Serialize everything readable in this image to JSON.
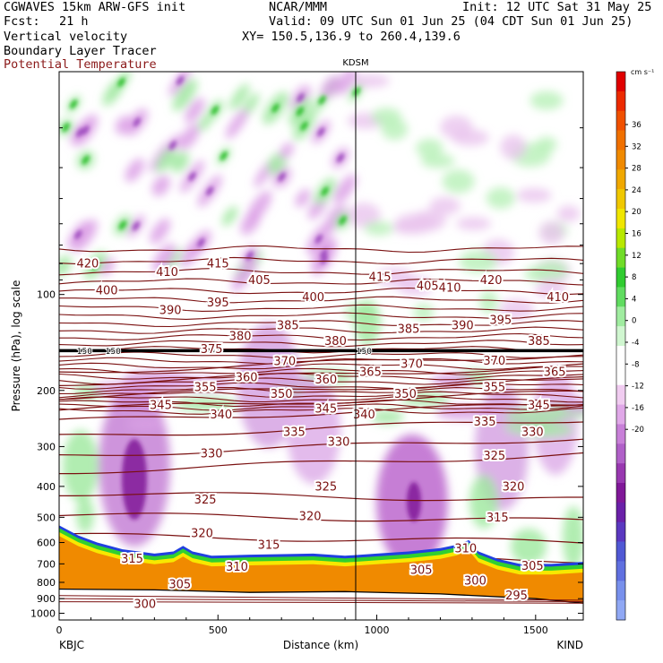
{
  "header": {
    "model": "CGWAVES 15km ARW-GFS init",
    "source": "NCAR/MMM",
    "init": "Init: 12 UTC Sat 31 May 25",
    "fcst_label": "Fcst:",
    "fcst_value": "21 h",
    "valid": "Valid: 09 UTC Sun 01 Jun 25 (04 CDT Sun 01 Jun 25)",
    "field1": "Vertical velocity",
    "field2": "Boundary Layer Tracer",
    "field3": "Potential Temperature",
    "xy": "XY= 150.5,136.9 to 260.4,139.6"
  },
  "colors": {
    "theta": "#7a1010",
    "tropopause": "#000000",
    "terrain_orange": "#f08a00",
    "terrain_yellow": "#f8e800",
    "terrain_green": "#30d030",
    "terrain_blue": "#2040e0"
  },
  "chart_data": {
    "type": "heatmap",
    "station_marker": "KDSM",
    "xlabel": "Distance (km)",
    "ylabel": "Pressure (hPa), log scale",
    "x_ticks": [
      "0",
      "500",
      "1000",
      "1500"
    ],
    "x_tick_values": [
      0,
      500,
      1000,
      1500
    ],
    "xlim": [
      0,
      1650
    ],
    "left_station": "KBJC",
    "right_station": "KIND",
    "y_ticks": [
      "100",
      "200",
      "300",
      "400",
      "500",
      "600",
      "700",
      "800",
      "900",
      "1000"
    ],
    "y_tick_values": [
      100,
      200,
      300,
      400,
      500,
      600,
      700,
      800,
      900,
      1000
    ],
    "y_scale": "log",
    "ylim": [
      1050,
      20
    ],
    "colorbar": {
      "unit": "cm s⁻¹",
      "labels": [
        "36",
        "32",
        "28",
        "24",
        "20",
        "16",
        "12",
        "8",
        "4",
        "0",
        "-4",
        "-8",
        "-12",
        "-16",
        "-20"
      ],
      "colors": [
        "#e00000",
        "#ec2a00",
        "#f05000",
        "#f07000",
        "#f08a00",
        "#f0a800",
        "#f0c800",
        "#f0e600",
        "#b8e800",
        "#70dc28",
        "#30cc30",
        "#60dc60",
        "#a0eca0",
        "#d0f6d0",
        "#ffffff",
        "#ffffff",
        "#f0ccf0",
        "#e0a8e8",
        "#c880d8",
        "#b060c8",
        "#9838b0",
        "#801898",
        "#6a20a8",
        "#5a38c0",
        "#5058d4",
        "#6070e0",
        "#7890ec",
        "#90a8f4"
      ]
    },
    "tropopause_label": "150",
    "theta_labels": [
      {
        "text": "420",
        "x": 90,
        "p": 80
      },
      {
        "text": "410",
        "x": 340,
        "p": 85
      },
      {
        "text": "415",
        "x": 500,
        "p": 80
      },
      {
        "text": "405",
        "x": 630,
        "p": 90
      },
      {
        "text": "400",
        "x": 150,
        "p": 97
      },
      {
        "text": "400",
        "x": 800,
        "p": 102
      },
      {
        "text": "415",
        "x": 1010,
        "p": 88
      },
      {
        "text": "405",
        "x": 1160,
        "p": 94
      },
      {
        "text": "410",
        "x": 1230,
        "p": 95
      },
      {
        "text": "420",
        "x": 1360,
        "p": 90
      },
      {
        "text": "410",
        "x": 1570,
        "p": 102
      },
      {
        "text": "390",
        "x": 350,
        "p": 112
      },
      {
        "text": "395",
        "x": 500,
        "p": 106
      },
      {
        "text": "385",
        "x": 1100,
        "p": 128
      },
      {
        "text": "390",
        "x": 1270,
        "p": 125
      },
      {
        "text": "395",
        "x": 1390,
        "p": 120
      },
      {
        "text": "385",
        "x": 1510,
        "p": 140
      },
      {
        "text": "380",
        "x": 570,
        "p": 135
      },
      {
        "text": "385",
        "x": 720,
        "p": 125
      },
      {
        "text": "380",
        "x": 870,
        "p": 140
      },
      {
        "text": "375",
        "x": 480,
        "p": 148
      },
      {
        "text": "370",
        "x": 710,
        "p": 162
      },
      {
        "text": "370",
        "x": 1110,
        "p": 165
      },
      {
        "text": "370",
        "x": 1370,
        "p": 161
      },
      {
        "text": "365",
        "x": 980,
        "p": 175
      },
      {
        "text": "365",
        "x": 1560,
        "p": 175
      },
      {
        "text": "355",
        "x": 460,
        "p": 195
      },
      {
        "text": "360",
        "x": 590,
        "p": 182
      },
      {
        "text": "360",
        "x": 840,
        "p": 185
      },
      {
        "text": "355",
        "x": 1370,
        "p": 195
      },
      {
        "text": "350",
        "x": 700,
        "p": 205
      },
      {
        "text": "350",
        "x": 1090,
        "p": 205
      },
      {
        "text": "345",
        "x": 320,
        "p": 222
      },
      {
        "text": "345",
        "x": 840,
        "p": 228
      },
      {
        "text": "345",
        "x": 1510,
        "p": 222
      },
      {
        "text": "340",
        "x": 510,
        "p": 238
      },
      {
        "text": "340",
        "x": 960,
        "p": 238
      },
      {
        "text": "335",
        "x": 740,
        "p": 270
      },
      {
        "text": "335",
        "x": 1340,
        "p": 250
      },
      {
        "text": "330",
        "x": 1490,
        "p": 270
      },
      {
        "text": "330",
        "x": 880,
        "p": 290
      },
      {
        "text": "330",
        "x": 480,
        "p": 315
      },
      {
        "text": "325",
        "x": 1370,
        "p": 320
      },
      {
        "text": "325",
        "x": 840,
        "p": 400
      },
      {
        "text": "320",
        "x": 1430,
        "p": 400
      },
      {
        "text": "325",
        "x": 460,
        "p": 440
      },
      {
        "text": "320",
        "x": 790,
        "p": 495
      },
      {
        "text": "315",
        "x": 1380,
        "p": 500
      },
      {
        "text": "320",
        "x": 450,
        "p": 560
      },
      {
        "text": "315",
        "x": 660,
        "p": 610
      },
      {
        "text": "315",
        "x": 230,
        "p": 675
      },
      {
        "text": "310",
        "x": 560,
        "p": 715
      },
      {
        "text": "310",
        "x": 1280,
        "p": 625
      },
      {
        "text": "305",
        "x": 1140,
        "p": 730
      },
      {
        "text": "305",
        "x": 1490,
        "p": 710
      },
      {
        "text": "305",
        "x": 380,
        "p": 810
      },
      {
        "text": "300",
        "x": 1310,
        "p": 790
      },
      {
        "text": "295",
        "x": 1440,
        "p": 880
      },
      {
        "text": "300",
        "x": 270,
        "p": 935
      }
    ]
  }
}
